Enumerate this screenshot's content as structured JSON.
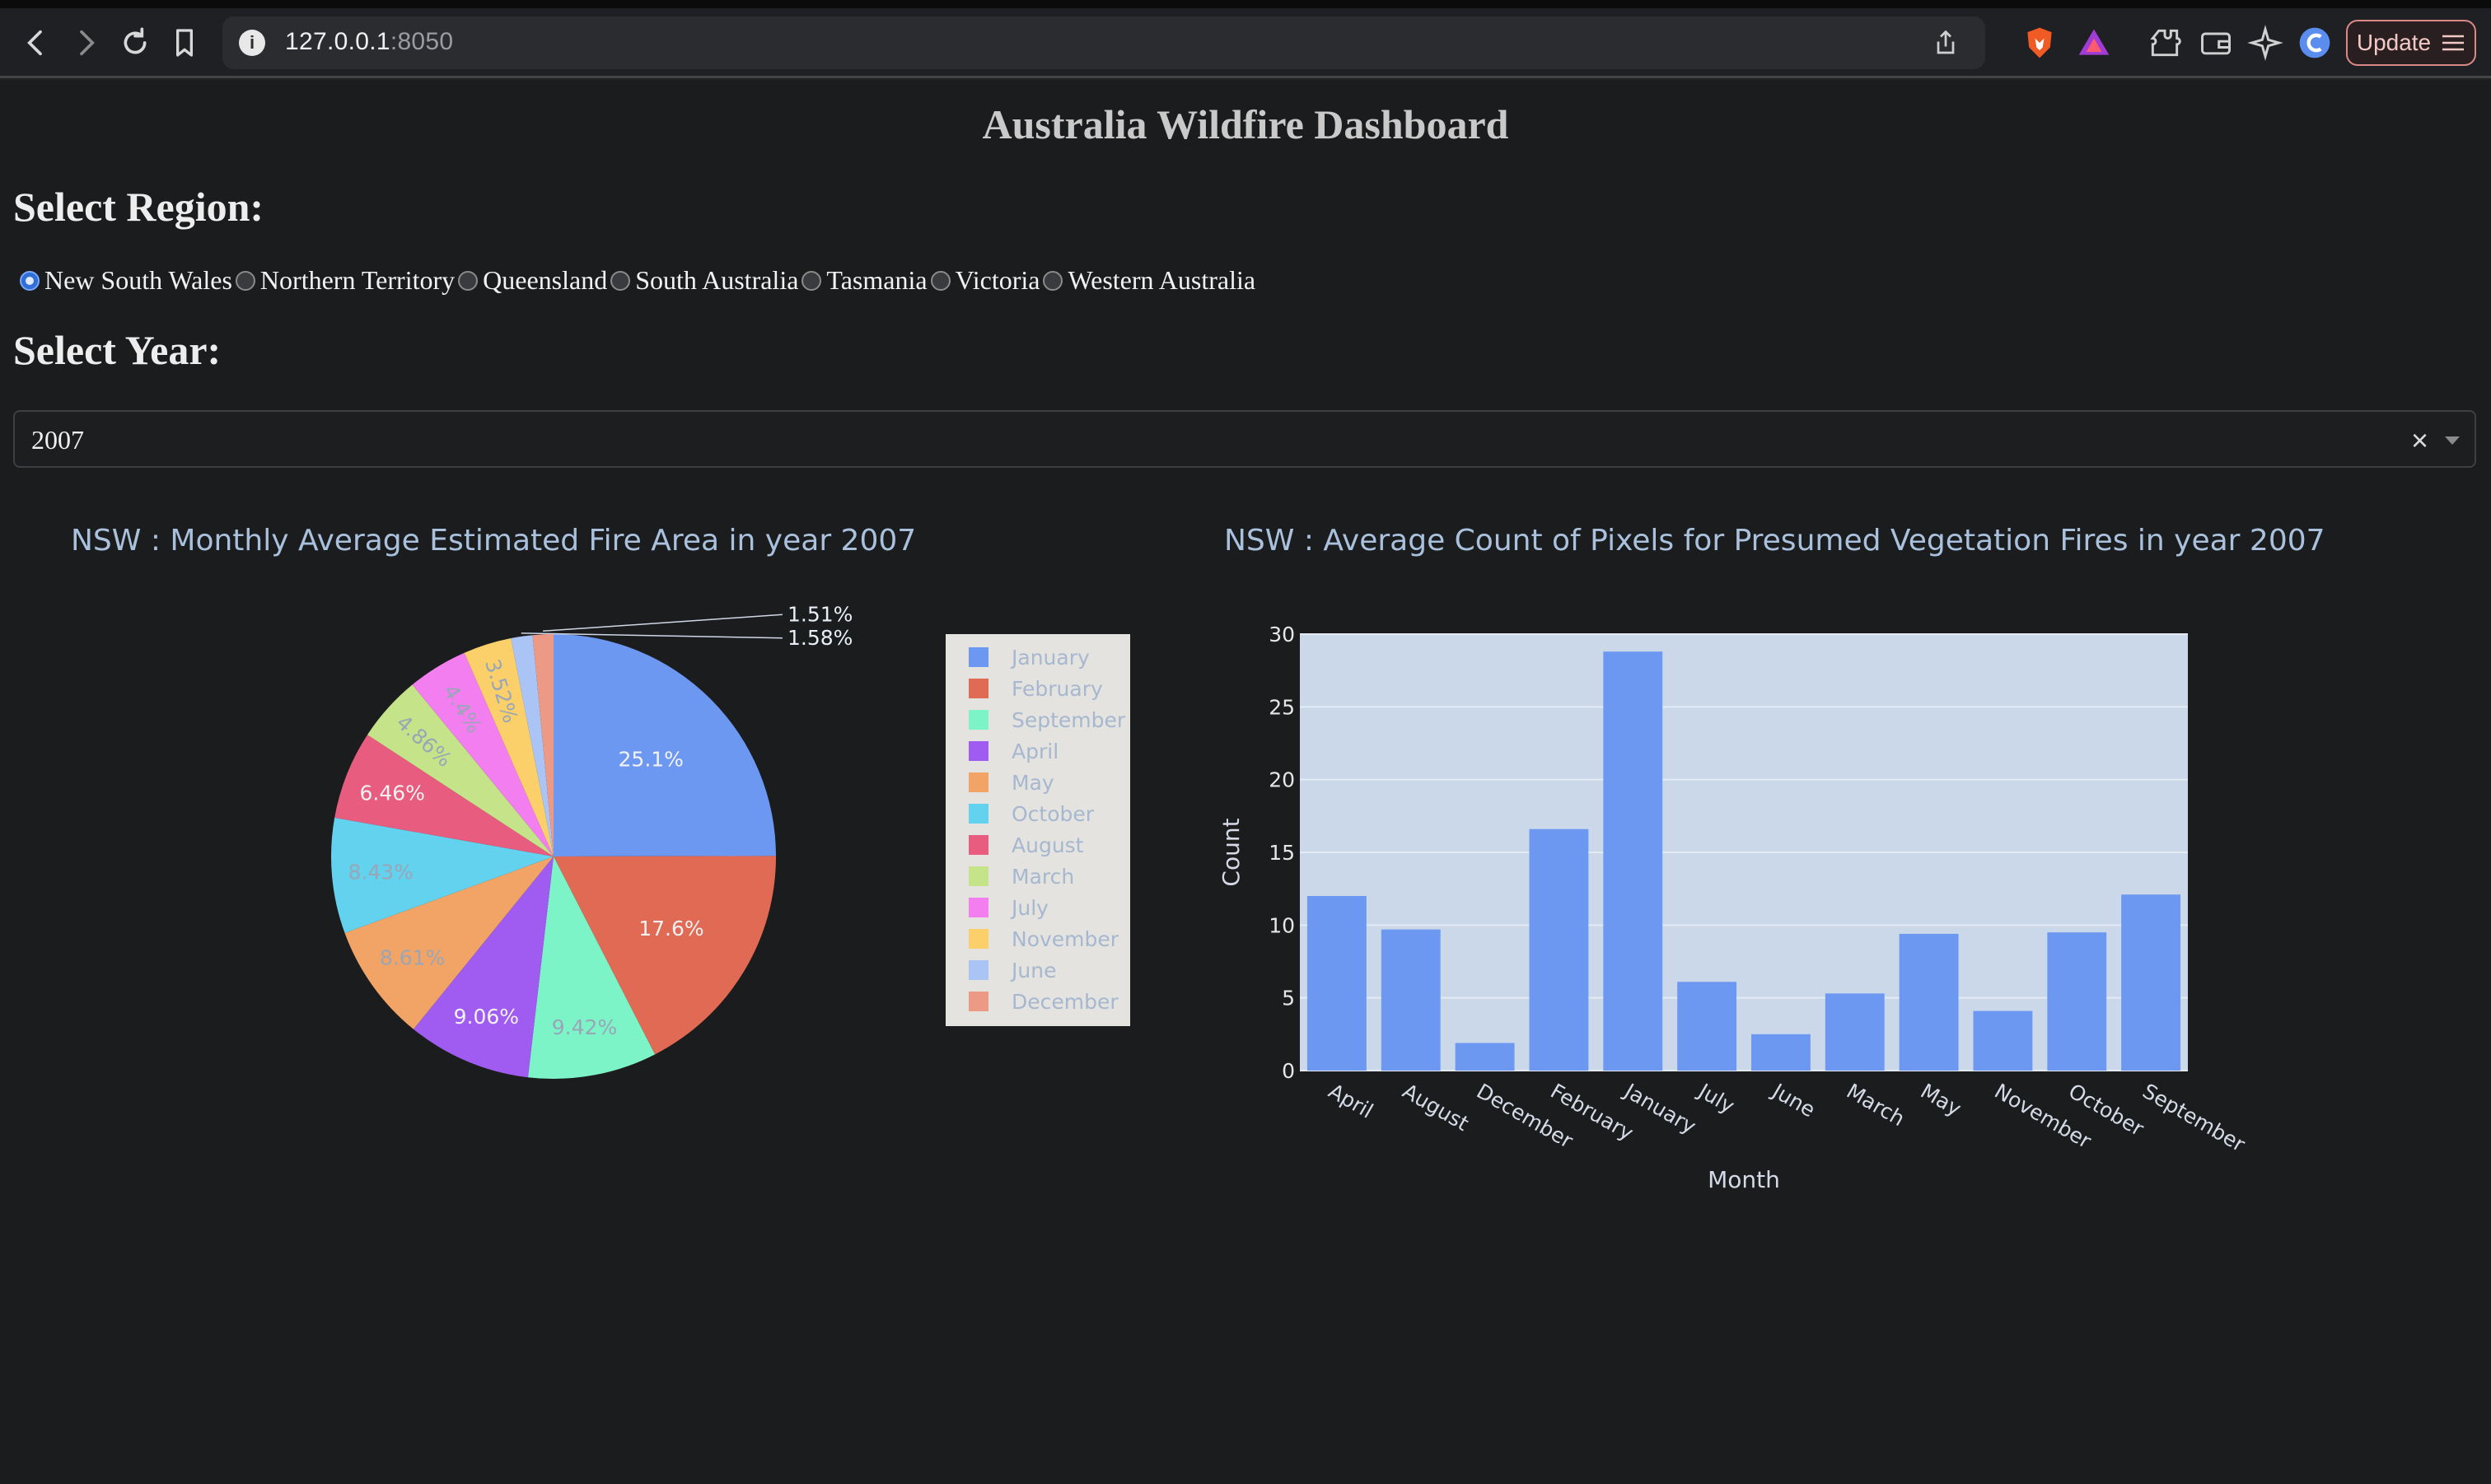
{
  "browser": {
    "url_host": "127.0.0.1",
    "url_port": ":8050",
    "update_label": "Update"
  },
  "page": {
    "title": "Australia Wildfire Dashboard",
    "region_label": "Select Region:",
    "year_label": "Select Year:"
  },
  "regions": {
    "options": [
      "New South Wales",
      "Northern Territory",
      "Queensland",
      "South Australia",
      "Tasmania",
      "Victoria",
      "Western Australia"
    ],
    "selected": "New South Wales"
  },
  "year_dropdown": {
    "value": "2007",
    "clear": "×"
  },
  "chart_data": [
    {
      "type": "pie",
      "title": "NSW : Monthly Average Estimated Fire Area in year 2007",
      "labels": [
        "January",
        "February",
        "September",
        "April",
        "May",
        "October",
        "August",
        "March",
        "July",
        "November",
        "June",
        "December"
      ],
      "values": [
        25.1,
        17.6,
        9.42,
        9.06,
        8.61,
        8.43,
        6.46,
        4.86,
        4.4,
        3.52,
        1.58,
        1.51
      ],
      "text_labels": [
        "25.1%",
        "17.6%",
        "9.42%",
        "9.06%",
        "8.61%",
        "8.43%",
        "6.46%",
        "4.86%",
        "4.4%",
        "3.52%",
        "1.58%",
        "1.51%"
      ],
      "colors": [
        "#6d98f2",
        "#e06a54",
        "#7cf4c8",
        "#a05cf0",
        "#f2a466",
        "#62d2ee",
        "#e85d7f",
        "#c5e48a",
        "#f27ef0",
        "#fbd06a",
        "#aac4f6",
        "#ec9a86"
      ]
    },
    {
      "type": "bar",
      "title": "NSW : Average Count of Pixels for Presumed Vegetation Fires in year 2007",
      "categories": [
        "April",
        "August",
        "December",
        "February",
        "January",
        "July",
        "June",
        "March",
        "May",
        "November",
        "October",
        "September"
      ],
      "values": [
        12,
        9.7,
        1.9,
        16.6,
        28.8,
        6.1,
        2.5,
        5.3,
        9.4,
        4.1,
        9.5,
        12.1
      ],
      "xlabel": "Month",
      "ylabel": "Count",
      "ylim": [
        0,
        30
      ],
      "yticks": [
        "0",
        "5",
        "10",
        "15",
        "20",
        "25",
        "30"
      ],
      "bar_color": "#6d98f2",
      "plot_bg": "#cbd8ea"
    }
  ]
}
